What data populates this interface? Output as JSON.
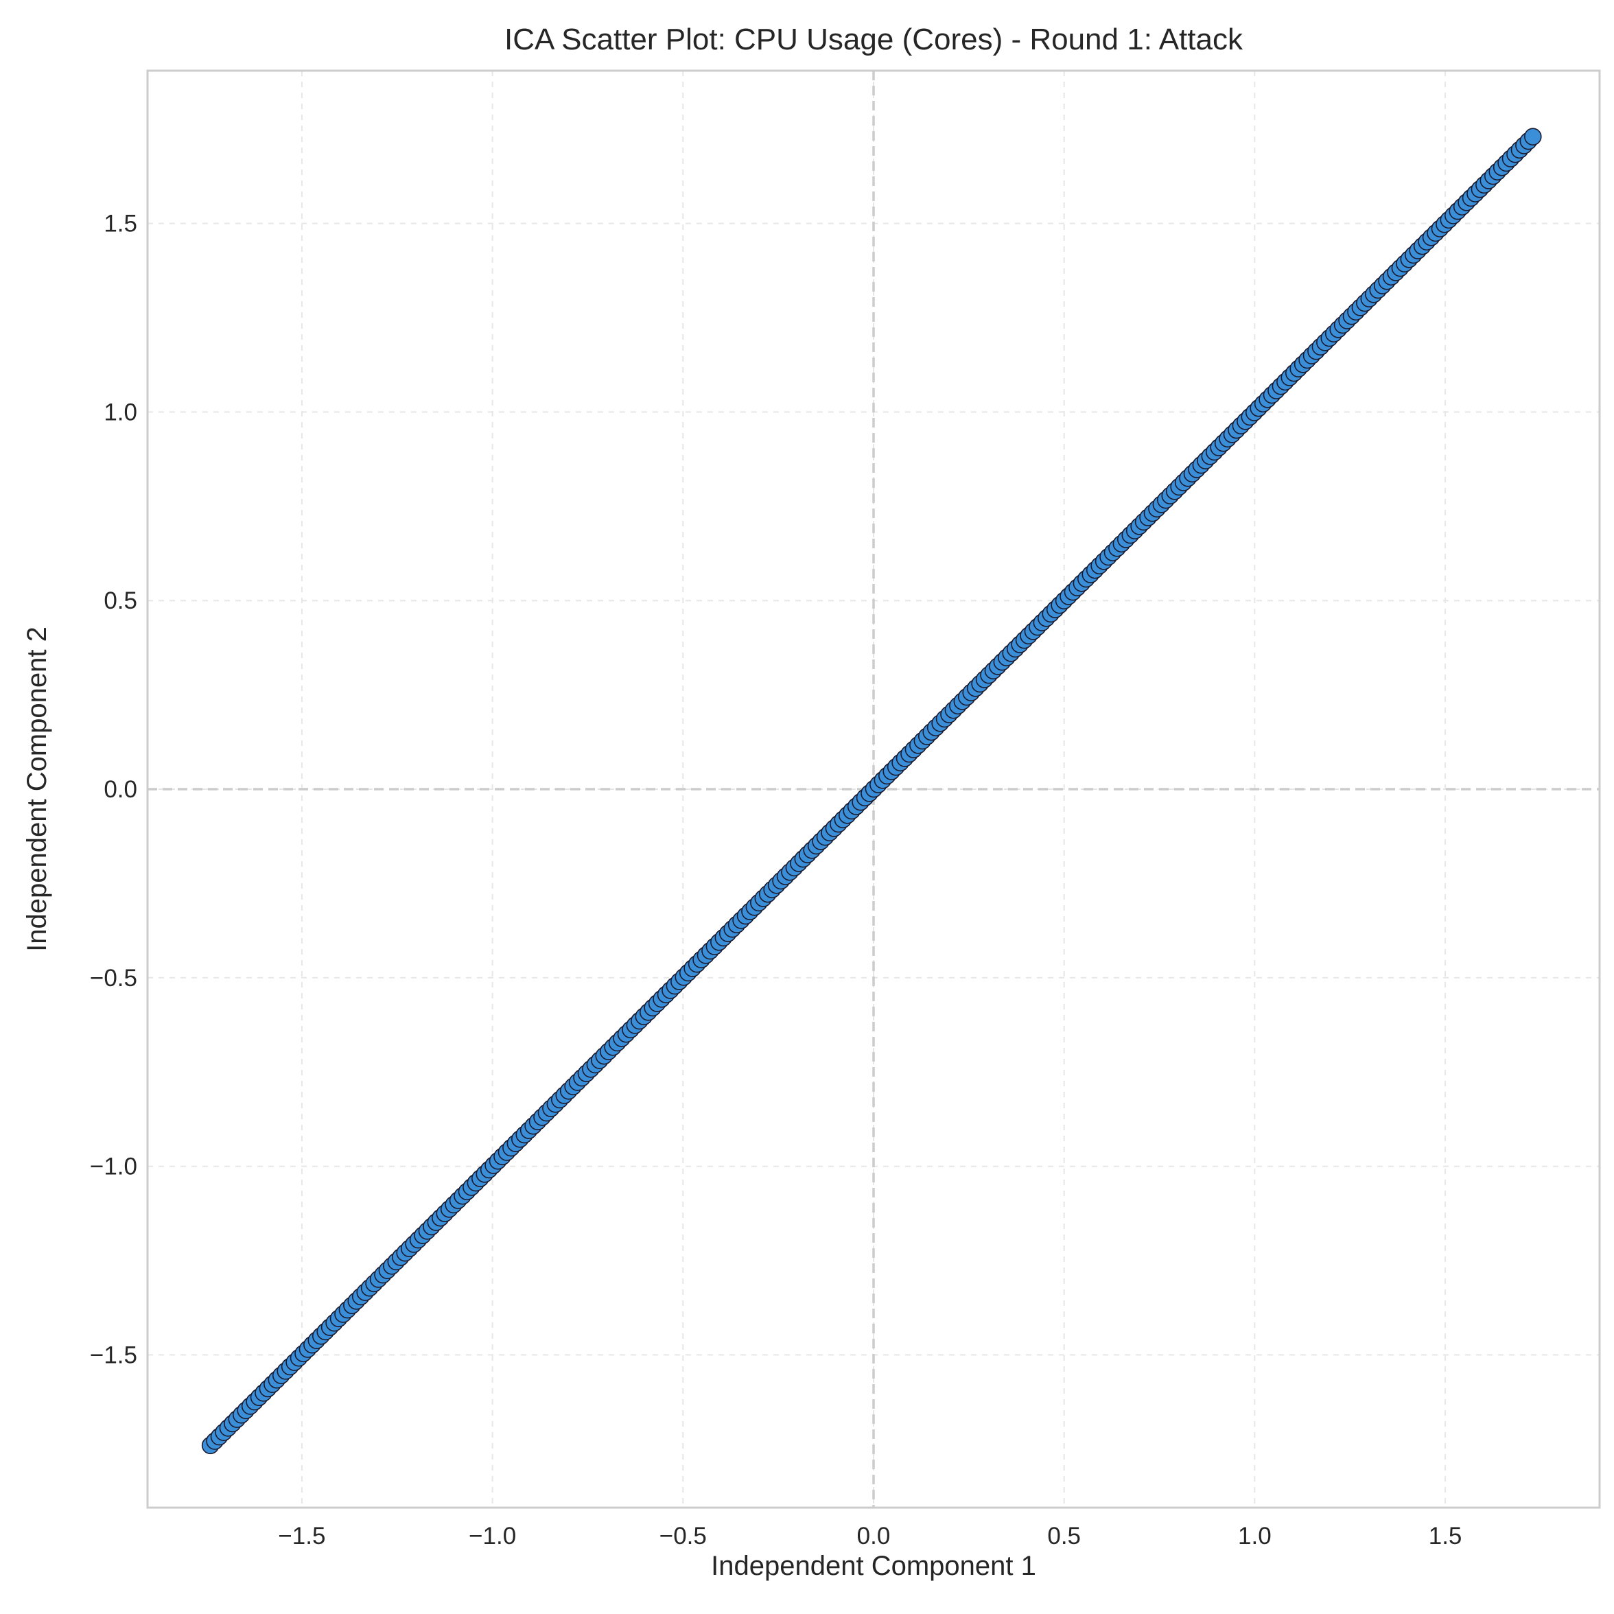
{
  "chart_data": {
    "type": "scatter",
    "title": "ICA Scatter Plot: CPU Usage (Cores) - Round 1: Attack",
    "xlabel": "Independent Component 1",
    "ylabel": "Independent Component 2",
    "xlim": [
      -1.905,
      1.905
    ],
    "ylim": [
      -1.905,
      1.905
    ],
    "xticks": [
      -1.5,
      -1.0,
      -0.5,
      0.0,
      0.5,
      1.0,
      1.5
    ],
    "yticks": [
      -1.5,
      -1.0,
      -0.5,
      0.0,
      0.5,
      1.0,
      1.5
    ],
    "xtick_labels": [
      "−1.5",
      "−1.0",
      "−0.5",
      "0.0",
      "0.5",
      "1.0",
      "1.5"
    ],
    "ytick_labels": [
      "−1.5",
      "−1.0",
      "−0.5",
      "0.0",
      "0.5",
      "1.0",
      "1.5"
    ],
    "grid": true,
    "zero_lines": true,
    "point_color": "#3b8fd9",
    "edge_color": "#1a1a2e",
    "series": [
      {
        "x_range": [
          -1.74,
          1.73
        ],
        "count": 300,
        "relation": "y = x",
        "x": [],
        "y": []
      }
    ]
  }
}
